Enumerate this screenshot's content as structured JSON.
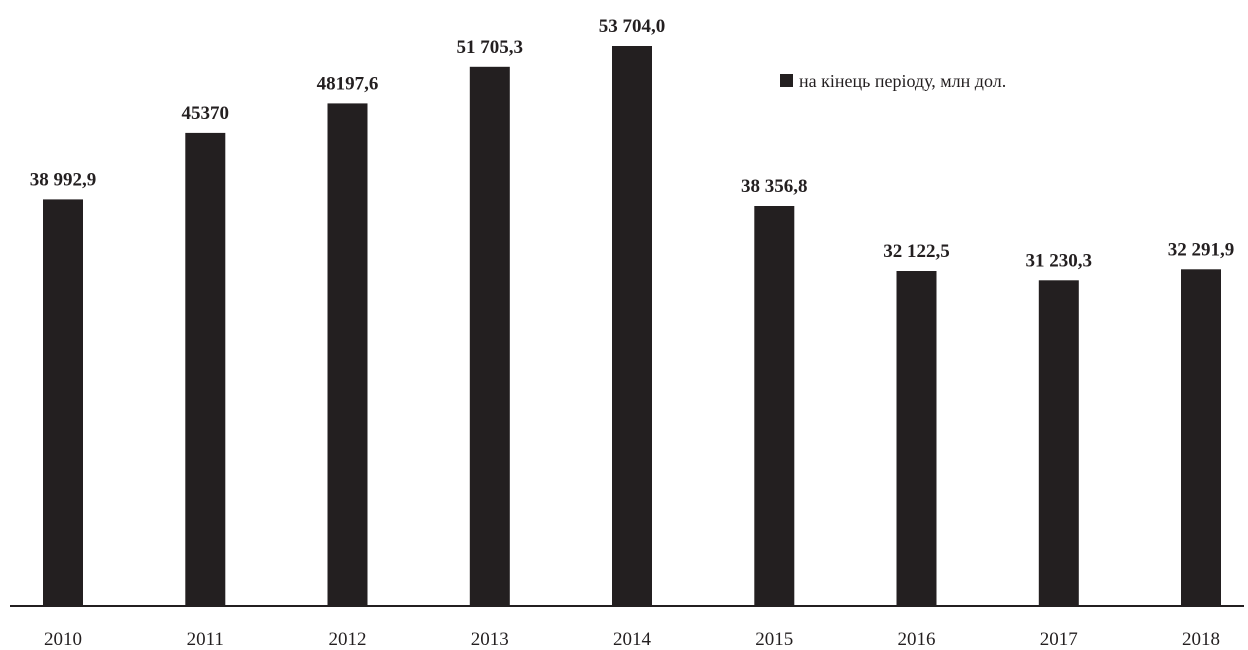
{
  "chart_data": {
    "type": "bar",
    "categories": [
      "2010",
      "2011",
      "2012",
      "2013",
      "2014",
      "2015",
      "2016",
      "2017",
      "2018"
    ],
    "series": [
      {
        "name": "на кінець періоду, млн дол.",
        "values": [
          38992.9,
          45370,
          48197.6,
          51705.3,
          53704.0,
          38356.8,
          32122.5,
          31230.3,
          32291.9
        ],
        "labels": [
          "38 992,9",
          "45370",
          "48197,6",
          "51 705,3",
          "53 704,0",
          "38 356,8",
          "32 122,5",
          "31 230,3",
          "32 291,9"
        ],
        "color": "#231f20"
      }
    ],
    "title": "",
    "xlabel": "",
    "ylabel": "",
    "ylim": [
      0,
      55000
    ],
    "grid": false,
    "legend": "top-right"
  }
}
